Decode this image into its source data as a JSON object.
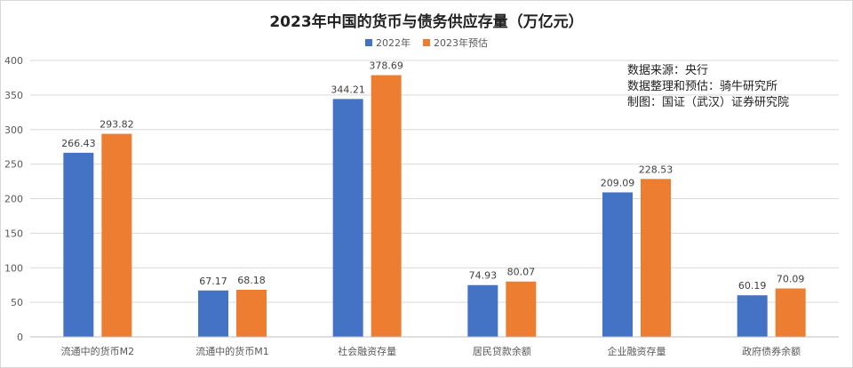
{
  "chart_data": {
    "type": "bar",
    "title": "2023年中国的货币与债务供应存量（万亿元）",
    "categories": [
      "流通中的货币M2",
      "流通中的货币M1",
      "社会融资存量",
      "居民贷款余额",
      "企业融资存量",
      "政府债券余额"
    ],
    "series": [
      {
        "name": "2022年",
        "color": "#4472c4",
        "values": [
          266.43,
          67.17,
          344.21,
          74.93,
          209.09,
          60.19
        ],
        "labels": [
          "266.43",
          "67.17",
          "344.21",
          "74.93",
          "209.09",
          "60.19"
        ]
      },
      {
        "name": "2023年预估",
        "color": "#ed7d31",
        "values": [
          293.82,
          68.18,
          378.69,
          80.07,
          228.53,
          70.09
        ],
        "labels": [
          "293.82",
          "68.18",
          "378.69",
          "80.07",
          "228.53",
          "70.09"
        ]
      }
    ],
    "ylim": [
      0,
      400
    ],
    "yticks": [
      "0",
      "50",
      "100",
      "150",
      "200",
      "250",
      "300",
      "350",
      "400"
    ],
    "grid": true,
    "legend": "top-center",
    "gridline_color": "#d9d9d9"
  },
  "source_note": {
    "line1": "数据来源：央行",
    "line2": "数据整理和预估：骑牛研究所",
    "line3": "制图：国证（武汉）证券研究院"
  }
}
